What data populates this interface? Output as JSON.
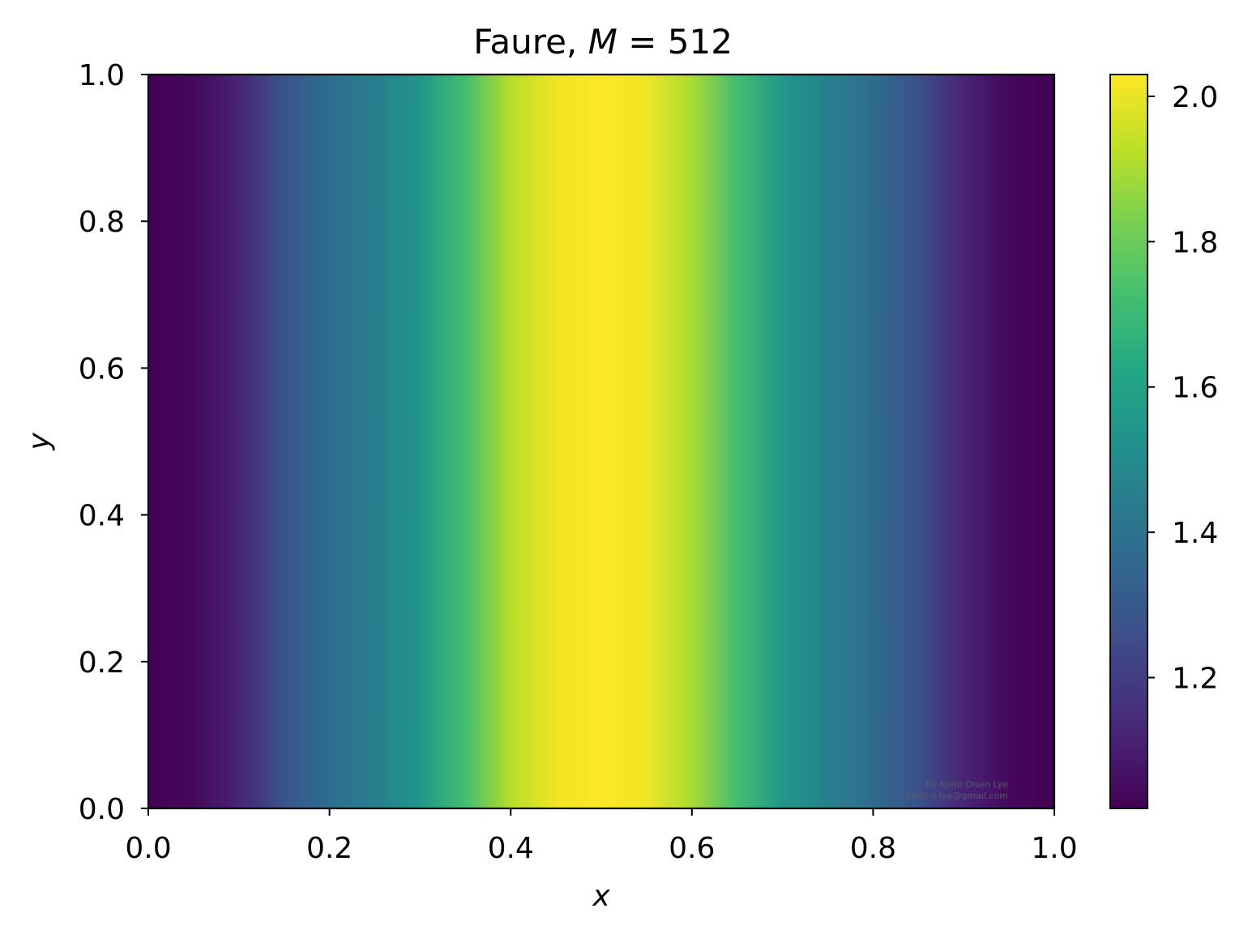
{
  "chart_data": {
    "type": "heatmap",
    "title": {
      "prefix": "Faure, ",
      "var": "M",
      "eq": " = ",
      "value": "512"
    },
    "xlabel": "x",
    "ylabel": "y",
    "xlim": [
      0.0,
      1.0
    ],
    "ylim": [
      0.0,
      1.0
    ],
    "xticks": [
      0.0,
      0.2,
      0.4,
      0.6,
      0.8,
      1.0
    ],
    "xtick_labels": [
      "0.0",
      "0.2",
      "0.4",
      "0.6",
      "0.8",
      "1.0"
    ],
    "yticks": [
      0.0,
      0.2,
      0.4,
      0.6,
      0.8,
      1.0
    ],
    "ytick_labels": [
      "0.0",
      "0.2",
      "0.4",
      "0.6",
      "0.8",
      "1.0"
    ],
    "colormap": "viridis",
    "grid": false,
    "colorbar": {
      "range": [
        1.02,
        2.03
      ],
      "ticks": [
        1.2,
        1.4,
        1.6,
        1.8,
        2.0
      ],
      "tick_labels": [
        "1.2",
        "1.4",
        "1.6",
        "1.8",
        "2.0"
      ]
    },
    "field": {
      "description_values": "value as a function of x, nearly constant in y",
      "x": [
        0.0,
        0.05,
        0.1,
        0.15,
        0.2,
        0.25,
        0.3,
        0.35,
        0.4,
        0.45,
        0.5,
        0.55,
        0.6,
        0.65,
        0.7,
        0.75,
        0.8,
        0.85,
        0.9,
        0.95,
        1.0
      ],
      "values": [
        1.02,
        1.04,
        1.12,
        1.28,
        1.38,
        1.45,
        1.55,
        1.72,
        1.92,
        2.01,
        2.03,
        2.01,
        1.9,
        1.72,
        1.55,
        1.46,
        1.38,
        1.27,
        1.12,
        1.04,
        1.02
      ]
    },
    "watermark": {
      "line1": "By Kjetil Olsen Lye",
      "line2": "kjetil.o.lye@gmail.com"
    }
  }
}
